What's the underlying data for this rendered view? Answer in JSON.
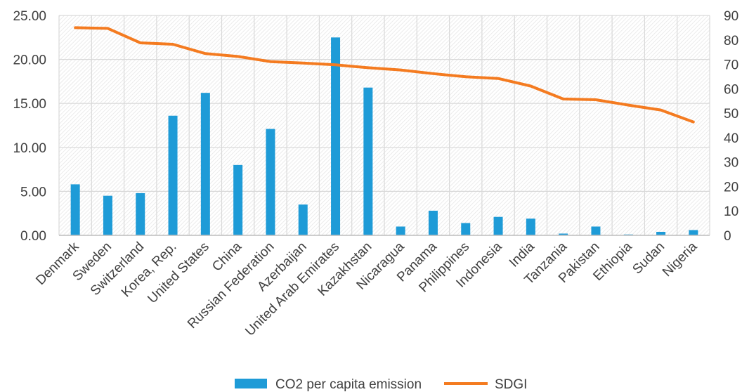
{
  "chart_data": {
    "type": "bar",
    "categories": [
      "Denmark",
      "Sweden",
      "Switzerland",
      "Korea, Rep.",
      "United States",
      "China",
      "Russian Federation",
      "Azerbaijan",
      "United Arab Emirates",
      "Kazakhstan",
      "Nicaragua",
      "Panama",
      "Philippines",
      "Indonesia",
      "India",
      "Tanzania",
      "Pakistan",
      "Ethiopia",
      "Sudan",
      "Nigeria"
    ],
    "series": [
      {
        "name": "CO2 per capita emission",
        "type": "bar",
        "axis": "left",
        "color": "#1E9BD7",
        "values": [
          5.8,
          4.5,
          4.8,
          13.6,
          16.2,
          8.0,
          12.1,
          3.5,
          22.5,
          16.8,
          1.0,
          2.8,
          1.4,
          2.1,
          1.9,
          0.2,
          1.0,
          0.1,
          0.4,
          0.6
        ]
      },
      {
        "name": "SDGI",
        "type": "line",
        "axis": "right",
        "color": "#F47B20",
        "values": [
          85.0,
          84.7,
          78.8,
          78.2,
          74.4,
          73.2,
          71.1,
          70.5,
          69.8,
          68.6,
          67.7,
          66.2,
          64.9,
          64.2,
          61.1,
          55.8,
          55.5,
          53.3,
          51.3,
          46.4
        ]
      }
    ],
    "y_left": {
      "min": 0,
      "max": 25,
      "step": 5,
      "tick_labels": [
        "0.00",
        "5.00",
        "10.00",
        "15.00",
        "20.00",
        "25.00"
      ]
    },
    "y_right": {
      "min": 0,
      "max": 90,
      "step": 10,
      "tick_labels": [
        "0",
        "10",
        "20",
        "30",
        "40",
        "50",
        "60",
        "70",
        "80",
        "90"
      ]
    },
    "grid": true,
    "legend_position": "bottom"
  },
  "legend": {
    "bar_label": "CO2 per capita emission",
    "line_label": "SDGI"
  }
}
